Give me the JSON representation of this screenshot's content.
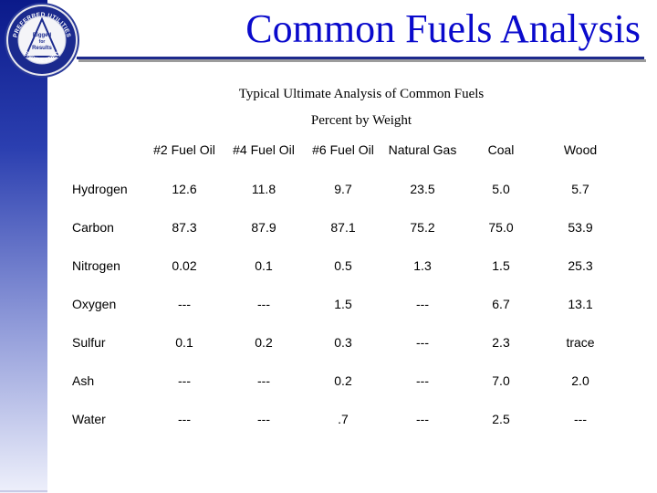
{
  "logo": {
    "ring_text_top": "PREFERRED UTILITIES",
    "ring_text_bottom": "ENGINEERED",
    "center_line1": "Rigged",
    "center_line2": "for",
    "center_line3": "Results"
  },
  "slide": {
    "title": "Common Fuels Analysis",
    "subtitle": "Typical Ultimate Analysis of Common Fuels",
    "subtitle2": "Percent by Weight"
  },
  "table": {
    "columns": [
      "#2 Fuel Oil",
      "#4 Fuel Oil",
      "#6 Fuel Oil",
      "Natural Gas",
      "Coal",
      "Wood"
    ],
    "rows": [
      {
        "label": "Hydrogen",
        "values": [
          "12.6",
          "11.8",
          "9.7",
          "23.5",
          "5.0",
          "5.7"
        ]
      },
      {
        "label": "Carbon",
        "values": [
          "87.3",
          "87.9",
          "87.1",
          "75.2",
          "75.0",
          "53.9"
        ]
      },
      {
        "label": "Nitrogen",
        "values": [
          "0.02",
          "0.1",
          "0.5",
          "1.3",
          "1.5",
          "25.3"
        ]
      },
      {
        "label": "Oxygen",
        "values": [
          "---",
          "---",
          "1.5",
          "---",
          "6.7",
          "13.1"
        ]
      },
      {
        "label": "Sulfur",
        "values": [
          "0.1",
          "0.2",
          "0.3",
          "---",
          "2.3",
          "trace"
        ]
      },
      {
        "label": "Ash",
        "values": [
          "---",
          "---",
          "0.2",
          "---",
          "7.0",
          "2.0"
        ]
      },
      {
        "label": "Water",
        "values": [
          "---",
          "---",
          ".7",
          "---",
          "2.5",
          "---"
        ]
      }
    ]
  },
  "colors": {
    "title": "#0a0acc",
    "rule": "#1e2a8c",
    "sidebar_top": "#0b1a8a"
  }
}
